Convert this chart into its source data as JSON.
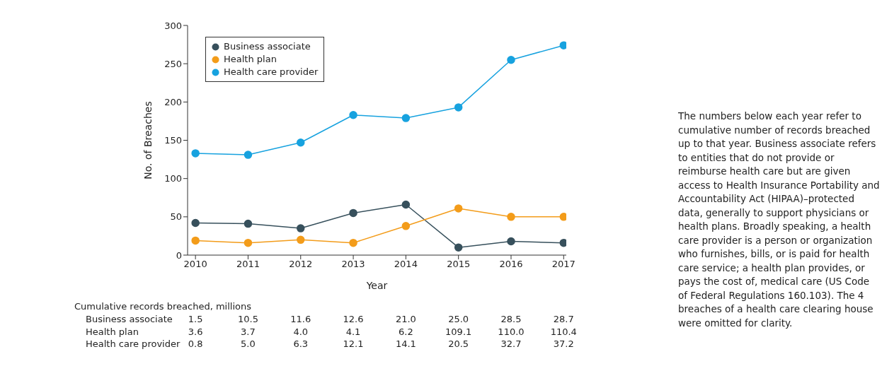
{
  "chart_data": {
    "type": "line",
    "xlabel": "Year",
    "ylabel": "No. of Breaches",
    "x": [
      2010,
      2011,
      2012,
      2013,
      2014,
      2015,
      2016,
      2017
    ],
    "xlim": [
      2009.85,
      2017.05
    ],
    "xticks": [
      2010,
      2011,
      2012,
      2013,
      2014,
      2015,
      2016,
      2017
    ],
    "ylim": [
      0,
      300
    ],
    "yticks": [
      0,
      50,
      100,
      150,
      200,
      250,
      300
    ],
    "grid": false,
    "legend": "top left",
    "marker": "circle",
    "line_style": "solid",
    "series": [
      {
        "name": "Business associate",
        "color": "#37505c",
        "values": [
          42,
          41,
          35,
          55,
          66,
          10,
          18,
          16
        ]
      },
      {
        "name": "Health plan",
        "color": "#f39c1a",
        "values": [
          19,
          16,
          20,
          16,
          38,
          61,
          50,
          50
        ]
      },
      {
        "name": "Health care provider",
        "color": "#17a2df",
        "values": [
          133,
          131,
          147,
          183,
          179,
          193,
          255,
          274
        ]
      }
    ],
    "annotations": [
      "Cumulative records breached, millions",
      "Business associate",
      "1.5",
      "10.5",
      "11.6",
      "12.6",
      "21.0",
      "25.0",
      "28.5",
      "28.7",
      "Health plan",
      "3.6",
      "3.7",
      "4.0",
      "4.1",
      "6.2",
      "109.1",
      "110.0",
      "110.4",
      "Health care provider",
      "0.8",
      "5.0",
      "6.3",
      "12.1",
      "14.1",
      "20.5",
      "32.7",
      "37.2",
      "The numbers below each year refer to cumulative number of records breached up to that year. Business associate refers to entities that do not provide or reimburse health care but are given access to Health Insurance Portability and Accountability Act (HIPAA)–protected data, generally to support physicians or health plans. Broadly speaking, a health care provider is a person or organization who furnishes, bills, or is paid for health care service; a health plan provides, or pays the cost of, medical care (US Code of Federal Regulations 160.103). The 4 breaches of a health care clearing house were omitted for clarity."
    ]
  }
}
